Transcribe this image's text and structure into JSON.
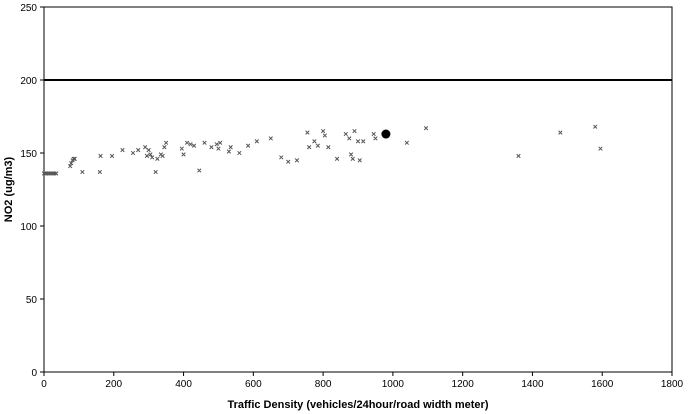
{
  "chart_data": {
    "type": "scatter",
    "title": "",
    "xlabel": "Traffic Density (vehicles/24hour/road width meter)",
    "ylabel": "NO2 (ug/m3)",
    "xlim": [
      0,
      1800
    ],
    "ylim": [
      0,
      250
    ],
    "x_ticks": [
      0,
      200,
      400,
      600,
      800,
      1000,
      1200,
      1400,
      1600,
      1800
    ],
    "y_ticks": [
      0,
      50,
      100,
      150,
      200,
      250
    ],
    "grid": false,
    "reference_line": {
      "y": 200,
      "color": "#000000"
    },
    "series": [
      {
        "marker": "x",
        "color": "#555555",
        "points": [
          [
            0,
            136
          ],
          [
            5,
            136
          ],
          [
            10,
            136
          ],
          [
            15,
            136
          ],
          [
            20,
            136
          ],
          [
            25,
            136
          ],
          [
            30,
            136
          ],
          [
            35,
            136
          ],
          [
            75,
            141
          ],
          [
            78,
            143
          ],
          [
            82,
            145
          ],
          [
            85,
            146
          ],
          [
            88,
            146
          ],
          [
            110,
            137
          ],
          [
            160,
            137
          ],
          [
            162,
            148
          ],
          [
            195,
            148
          ],
          [
            225,
            152
          ],
          [
            255,
            150
          ],
          [
            270,
            152
          ],
          [
            290,
            154
          ],
          [
            295,
            148
          ],
          [
            300,
            152
          ],
          [
            305,
            149
          ],
          [
            310,
            147
          ],
          [
            320,
            137
          ],
          [
            325,
            146
          ],
          [
            335,
            149
          ],
          [
            340,
            148
          ],
          [
            345,
            154
          ],
          [
            350,
            157
          ],
          [
            395,
            153
          ],
          [
            400,
            149
          ],
          [
            410,
            157
          ],
          [
            420,
            156
          ],
          [
            430,
            155
          ],
          [
            445,
            138
          ],
          [
            460,
            157
          ],
          [
            480,
            154
          ],
          [
            495,
            156
          ],
          [
            500,
            153
          ],
          [
            505,
            157
          ],
          [
            530,
            151
          ],
          [
            535,
            154
          ],
          [
            560,
            150
          ],
          [
            585,
            155
          ],
          [
            610,
            158
          ],
          [
            650,
            160
          ],
          [
            680,
            147
          ],
          [
            700,
            144
          ],
          [
            725,
            145
          ],
          [
            755,
            164
          ],
          [
            760,
            154
          ],
          [
            775,
            158
          ],
          [
            785,
            155
          ],
          [
            800,
            165
          ],
          [
            805,
            162
          ],
          [
            815,
            154
          ],
          [
            840,
            146
          ],
          [
            865,
            163
          ],
          [
            875,
            160
          ],
          [
            880,
            149
          ],
          [
            885,
            146
          ],
          [
            890,
            165
          ],
          [
            900,
            158
          ],
          [
            905,
            145
          ],
          [
            915,
            158
          ],
          [
            945,
            163
          ],
          [
            950,
            160
          ],
          [
            1040,
            157
          ],
          [
            1095,
            167
          ],
          [
            1360,
            148
          ],
          [
            1480,
            164
          ],
          [
            1580,
            168
          ],
          [
            1595,
            153
          ]
        ]
      },
      {
        "marker": "filled-circle",
        "color": "#000000",
        "points": [
          [
            980,
            163
          ]
        ]
      }
    ]
  }
}
